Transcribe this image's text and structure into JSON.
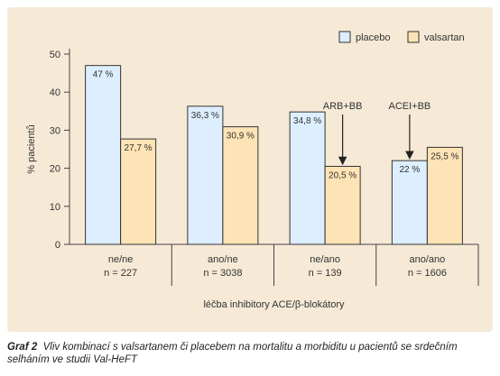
{
  "chart_data": {
    "type": "bar",
    "categories": [
      "ne/ne",
      "ano/ne",
      "ne/ano",
      "ano/ano"
    ],
    "category_n": [
      "n = 227",
      "n = 3038",
      "n = 139",
      "n = 1606"
    ],
    "series": [
      {
        "name": "placebo",
        "values": [
          47,
          36.3,
          34.8,
          22
        ],
        "labels": [
          "47 %",
          "36,3 %",
          "34,8 %",
          "22 %"
        ],
        "color": "#ddeeff"
      },
      {
        "name": "valsartan",
        "values": [
          27.7,
          30.9,
          20.5,
          25.5
        ],
        "labels": [
          "27,7 %",
          "30,9 %",
          "20,5 %",
          "25,5 %"
        ],
        "color": "#fde3b5"
      }
    ],
    "ylabel": "% pacientů",
    "xlabel": "léčba inhibitory ACE/β-blokátory",
    "ylim": [
      0,
      50
    ],
    "yticks": [
      0,
      10,
      20,
      30,
      40,
      50
    ],
    "ytick_labels": [
      "0",
      "10",
      "20",
      "30",
      "40",
      "50"
    ],
    "legend_position": "top-right",
    "annotations": [
      {
        "text": "ARB+BB",
        "category": 2,
        "series": 1
      },
      {
        "text": "ACEI+BB",
        "category": 3,
        "series": 0
      }
    ],
    "colors": {
      "panel": "#f6ead7",
      "bar_stroke": "#333333",
      "axis": "#444444"
    }
  },
  "caption": {
    "label": "Graf 2",
    "text": "Vliv kombinací s valsartanem či placebem na mortalitu a morbiditu u pacientů se srdečním selháním ve studii Val-HeFT"
  }
}
